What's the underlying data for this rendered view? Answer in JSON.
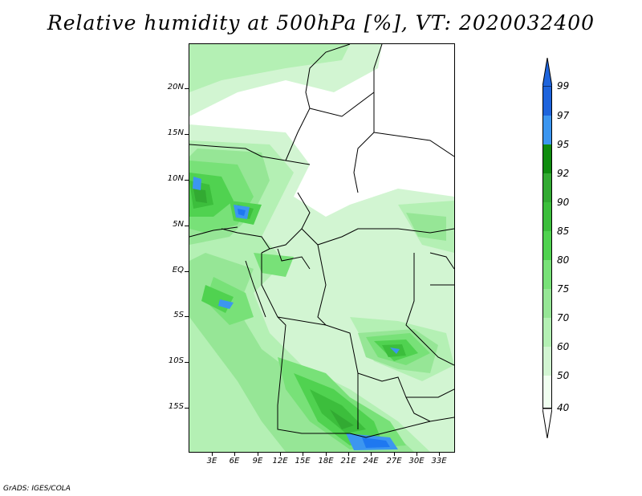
{
  "title": "Relative humidity at 500hPa [%], VT: 2020032400",
  "credit": "GrADS: IGES/COLA",
  "map": {
    "lat_labels": [
      "20N",
      "15N",
      "10N",
      "5N",
      "EQ",
      "5S",
      "10S",
      "15S"
    ],
    "lon_labels": [
      "3E",
      "6E",
      "9E",
      "12E",
      "15E",
      "18E",
      "21E",
      "24E",
      "27E",
      "30E",
      "33E"
    ]
  },
  "colorbar": {
    "labels": [
      "99",
      "97",
      "95",
      "92",
      "90",
      "85",
      "80",
      "75",
      "70",
      "60",
      "50",
      "40"
    ],
    "colors": [
      "#1e64dc",
      "#1e78f0",
      "#3c96f0",
      "#0f8c0f",
      "#32aa32",
      "#3cbe3c",
      "#50d250",
      "#78e178",
      "#96e696",
      "#b4f0b4",
      "#d2f5d2",
      "#f0fff0"
    ]
  }
}
